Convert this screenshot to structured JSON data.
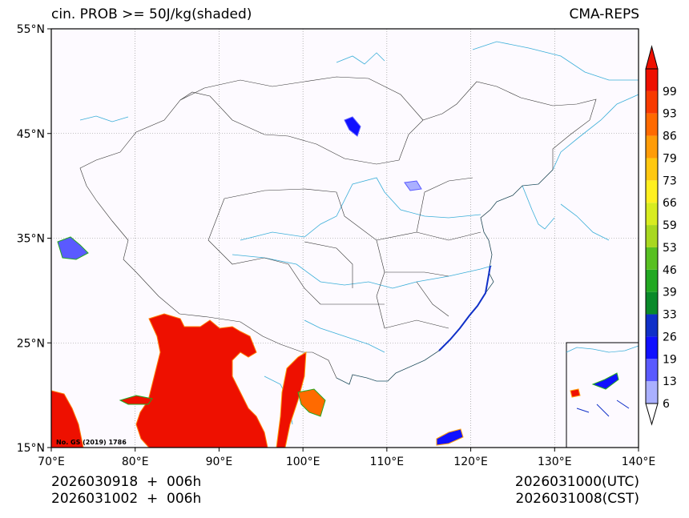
{
  "title_left": "cin. PROB >= 50J/kg(shaded)",
  "title_right": "CMA-REPS",
  "footer": {
    "init_line1": "2026030918  +  006h",
    "init_line2": "2026031002  +  006h",
    "valid_utc": "2026031000(UTC)",
    "valid_cst": "2026031008(CST)"
  },
  "map_credit": "No. GS (2019) 1786",
  "chart_data": {
    "type": "heatmap",
    "title": "cin. PROB >= 50J/kg(shaded)",
    "source": "CMA-REPS",
    "lon_range": [
      70,
      140
    ],
    "lat_range": [
      15,
      55
    ],
    "x_ticks": [
      {
        "lon": 70,
        "label": "70°E"
      },
      {
        "lon": 80,
        "label": "80°E"
      },
      {
        "lon": 90,
        "label": "90°E"
      },
      {
        "lon": 100,
        "label": "100°E"
      },
      {
        "lon": 110,
        "label": "110°E"
      },
      {
        "lon": 120,
        "label": "120°E"
      },
      {
        "lon": 130,
        "label": "130°E"
      },
      {
        "lon": 140,
        "label": "140°E"
      }
    ],
    "y_ticks": [
      {
        "lat": 55,
        "label": "55°N"
      },
      {
        "lat": 45,
        "label": "45°N"
      },
      {
        "lat": 35,
        "label": "35°N"
      },
      {
        "lat": 25,
        "label": "25°N"
      },
      {
        "lat": 15,
        "label": "15°N"
      }
    ],
    "colorbar": {
      "levels": [
        "6",
        "13",
        "19",
        "26",
        "33",
        "39",
        "46",
        "53",
        "59",
        "66",
        "73",
        "79",
        "86",
        "93",
        "99"
      ],
      "colors": [
        "#aab0ff",
        "#5a5aff",
        "#1010ff",
        "#1030c8",
        "#0a8a2a",
        "#22a822",
        "#58c022",
        "#a8d820",
        "#d8ec20",
        "#fff020",
        "#ffc810",
        "#ff9c08",
        "#ff6a00",
        "#f83a00",
        "#ee1000"
      ]
    },
    "regions": [
      {
        "name": "bay-of-bengal-myanmar",
        "level": "99"
      },
      {
        "name": "pakistan-coast",
        "level": "99"
      },
      {
        "name": "southeast-china-coast",
        "level": "33"
      },
      {
        "name": "taklamakan-spot",
        "level": "19"
      }
    ]
  }
}
